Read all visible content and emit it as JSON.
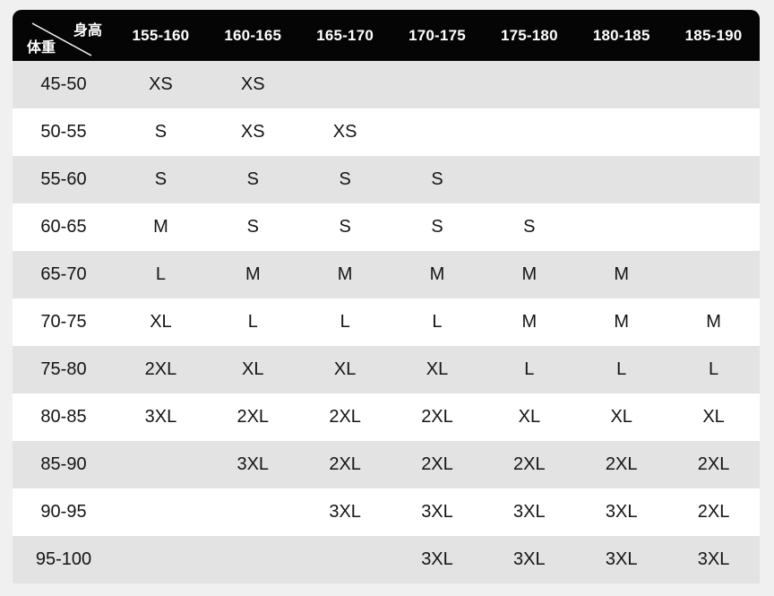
{
  "colors": {
    "header_bg": "#050505",
    "header_text": "#ffffff",
    "row_stripe": "#e3e3e3",
    "row_white": "#ffffff",
    "page_bg": "#f0f0f0",
    "body_text": "#141414"
  },
  "table": {
    "corner": {
      "top_label": "身高",
      "bottom_label": "体重"
    },
    "height_columns": [
      "155-160",
      "160-165",
      "165-170",
      "170-175",
      "175-180",
      "180-185",
      "185-190"
    ],
    "rows": [
      {
        "weight": "45-50",
        "values": [
          "XS",
          "XS",
          "",
          "",
          "",
          "",
          ""
        ]
      },
      {
        "weight": "50-55",
        "values": [
          "S",
          "XS",
          "XS",
          "",
          "",
          "",
          ""
        ]
      },
      {
        "weight": "55-60",
        "values": [
          "S",
          "S",
          "S",
          "S",
          "",
          "",
          ""
        ]
      },
      {
        "weight": "60-65",
        "values": [
          "M",
          "S",
          "S",
          "S",
          "S",
          "",
          ""
        ]
      },
      {
        "weight": "65-70",
        "values": [
          "L",
          "M",
          "M",
          "M",
          "M",
          "M",
          ""
        ]
      },
      {
        "weight": "70-75",
        "values": [
          "XL",
          "L",
          "L",
          "L",
          "M",
          "M",
          "M"
        ]
      },
      {
        "weight": "75-80",
        "values": [
          "2XL",
          "XL",
          "XL",
          "XL",
          "L",
          "L",
          "L"
        ]
      },
      {
        "weight": "80-85",
        "values": [
          "3XL",
          "2XL",
          "2XL",
          "2XL",
          "XL",
          "XL",
          "XL"
        ]
      },
      {
        "weight": "85-90",
        "values": [
          "",
          "3XL",
          "2XL",
          "2XL",
          "2XL",
          "2XL",
          "2XL"
        ]
      },
      {
        "weight": "90-95",
        "values": [
          "",
          "",
          "3XL",
          "3XL",
          "3XL",
          "3XL",
          "2XL"
        ]
      },
      {
        "weight": "95-100",
        "values": [
          "",
          "",
          "",
          "3XL",
          "3XL",
          "3XL",
          "3XL"
        ]
      }
    ]
  },
  "chart_data": {
    "type": "table",
    "title": "Clothing size chart by height (身高, cm) and weight (体重, kg)",
    "columns": [
      "体重\\身高",
      "155-160",
      "160-165",
      "165-170",
      "170-175",
      "175-180",
      "180-185",
      "185-190"
    ],
    "rows": [
      [
        "45-50",
        "XS",
        "XS",
        "",
        "",
        "",
        "",
        ""
      ],
      [
        "50-55",
        "S",
        "XS",
        "XS",
        "",
        "",
        "",
        ""
      ],
      [
        "55-60",
        "S",
        "S",
        "S",
        "S",
        "",
        "",
        ""
      ],
      [
        "60-65",
        "M",
        "S",
        "S",
        "S",
        "S",
        "",
        ""
      ],
      [
        "65-70",
        "L",
        "M",
        "M",
        "M",
        "M",
        "M",
        ""
      ],
      [
        "70-75",
        "XL",
        "L",
        "L",
        "L",
        "M",
        "M",
        "M"
      ],
      [
        "75-80",
        "2XL",
        "XL",
        "XL",
        "XL",
        "L",
        "L",
        "L"
      ],
      [
        "80-85",
        "3XL",
        "2XL",
        "2XL",
        "2XL",
        "XL",
        "XL",
        "XL"
      ],
      [
        "85-90",
        "",
        "3XL",
        "2XL",
        "2XL",
        "2XL",
        "2XL",
        "2XL"
      ],
      [
        "90-95",
        "",
        "",
        "3XL",
        "3XL",
        "3XL",
        "3XL",
        "2XL"
      ],
      [
        "95-100",
        "",
        "",
        "",
        "3XL",
        "3XL",
        "3XL",
        "3XL"
      ]
    ]
  }
}
